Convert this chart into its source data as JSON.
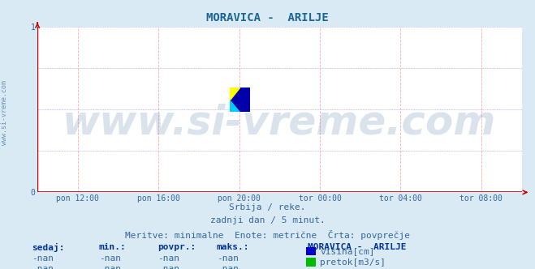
{
  "title": "MORAVICA -  ARILJE",
  "title_color": "#1a6496",
  "title_fontsize": 10,
  "bg_color": "#daeaf5",
  "plot_bg_color": "#ffffff",
  "grid_color": "#ffaaaa",
  "grid_color2": "#aaaaff",
  "axis_color": "#cc0000",
  "tick_color": "#336699",
  "ylim": [
    0,
    1
  ],
  "yticks": [
    0,
    1
  ],
  "watermark": "www.si-vreme.com",
  "watermark_color": "#336699",
  "watermark_alpha": 0.18,
  "watermark_fontsize": 36,
  "side_text": "www.si-vreme.com",
  "side_text_color": "#4477aa",
  "side_text_fontsize": 6,
  "xtick_labels": [
    "pon 12:00",
    "pon 16:00",
    "pon 20:00",
    "tor 00:00",
    "tor 04:00",
    "tor 08:00"
  ],
  "xtick_positions": [
    0.0833,
    0.25,
    0.4167,
    0.5833,
    0.75,
    0.9167
  ],
  "subtitle_lines": [
    "Srbija / reke.",
    "zadnji dan / 5 minut.",
    "Meritve: minimalne  Enote: metrične  Črta: povprečje"
  ],
  "subtitle_color": "#336699",
  "subtitle_fontsize": 8,
  "legend_title": "MORAVICA -  ARILJE",
  "legend_title_color": "#003399",
  "legend_title_fontsize": 8,
  "legend_items": [
    {
      "label": "višina[cm]",
      "color": "#0000cc"
    },
    {
      "label": "pretok[m3/s]",
      "color": "#00bb00"
    }
  ],
  "legend_fontsize": 8,
  "table_headers": [
    "sedaj:",
    "min.:",
    "povpr.:",
    "maks.:"
  ],
  "table_header_color": "#003399",
  "table_values": [
    "-nan",
    "-nan",
    "-nan",
    "-nan"
  ],
  "table_color": "#336699",
  "table_fontsize": 8,
  "logo_yellow": "#ffff00",
  "logo_cyan": "#00ccff",
  "logo_blue": "#0000aa"
}
